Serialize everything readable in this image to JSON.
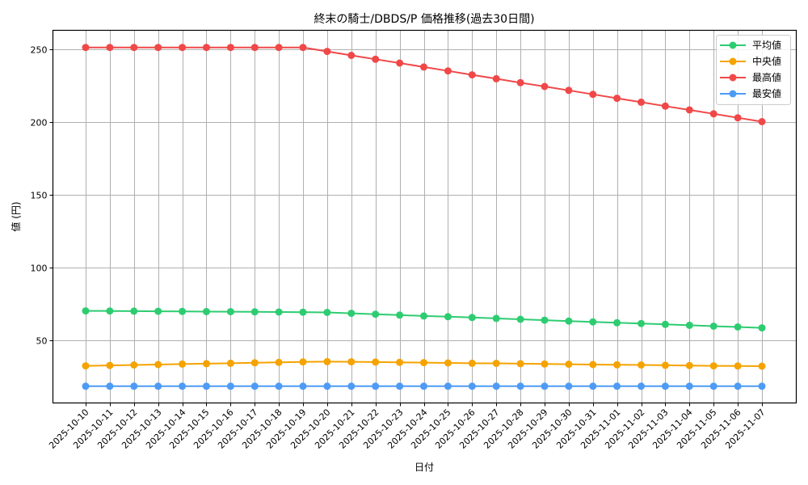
{
  "chart_data": {
    "type": "line",
    "title": "終末の騎士/DBDS/P 価格推移(過去30日間)",
    "xlabel": "日付",
    "ylabel": "値 (円)",
    "ylim": [
      6.7,
      262.8
    ],
    "yticks": [
      50,
      100,
      150,
      200,
      250
    ],
    "grid": true,
    "legend_position": "upper right",
    "categories": [
      "2025-10-10",
      "2025-10-11",
      "2025-10-12",
      "2025-10-13",
      "2025-10-14",
      "2025-10-15",
      "2025-10-16",
      "2025-10-17",
      "2025-10-18",
      "2025-10-19",
      "2025-10-20",
      "2025-10-21",
      "2025-10-22",
      "2025-10-23",
      "2025-10-24",
      "2025-10-25",
      "2025-10-26",
      "2025-10-27",
      "2025-10-28",
      "2025-10-29",
      "2025-10-30",
      "2025-10-31",
      "2025-11-01",
      "2025-11-02",
      "2025-11-03",
      "2025-11-04",
      "2025-11-05",
      "2025-11-06",
      "2025-11-07"
    ],
    "series": [
      {
        "name": "平均値",
        "color": "#2ecc71",
        "values": [
          70.0,
          69.9,
          69.8,
          69.7,
          69.6,
          69.5,
          69.4,
          69.3,
          69.2,
          69.1,
          68.9,
          68.3,
          67.7,
          67.1,
          66.5,
          66.0,
          65.4,
          64.8,
          64.2,
          63.6,
          63.0,
          62.4,
          61.8,
          61.3,
          60.7,
          60.1,
          59.5,
          58.9,
          58.3
        ]
      },
      {
        "name": "中央値",
        "color": "#f5a300",
        "values": [
          32.2,
          32.5,
          32.8,
          33.1,
          33.4,
          33.7,
          34.0,
          34.3,
          34.6,
          34.9,
          35.1,
          35.0,
          34.8,
          34.6,
          34.4,
          34.2,
          34.0,
          33.9,
          33.7,
          33.5,
          33.3,
          33.1,
          32.9,
          32.8,
          32.6,
          32.4,
          32.2,
          32.1,
          32.0
        ]
      },
      {
        "name": "最高値",
        "color": "#f04848",
        "values": [
          251.0,
          251.0,
          251.0,
          251.0,
          251.0,
          251.0,
          251.0,
          251.0,
          251.0,
          251.0,
          248.3,
          245.6,
          242.9,
          240.3,
          237.6,
          234.9,
          232.2,
          229.5,
          226.8,
          224.2,
          221.5,
          218.8,
          216.1,
          213.4,
          210.7,
          208.1,
          205.4,
          202.7,
          200.0
        ]
      },
      {
        "name": "最安値",
        "color": "#4d9bf5",
        "values": [
          18.2,
          18.2,
          18.2,
          18.2,
          18.2,
          18.2,
          18.2,
          18.2,
          18.2,
          18.2,
          18.2,
          18.2,
          18.2,
          18.2,
          18.2,
          18.2,
          18.2,
          18.2,
          18.2,
          18.2,
          18.2,
          18.2,
          18.2,
          18.2,
          18.2,
          18.2,
          18.2,
          18.2,
          18.2
        ]
      }
    ]
  }
}
